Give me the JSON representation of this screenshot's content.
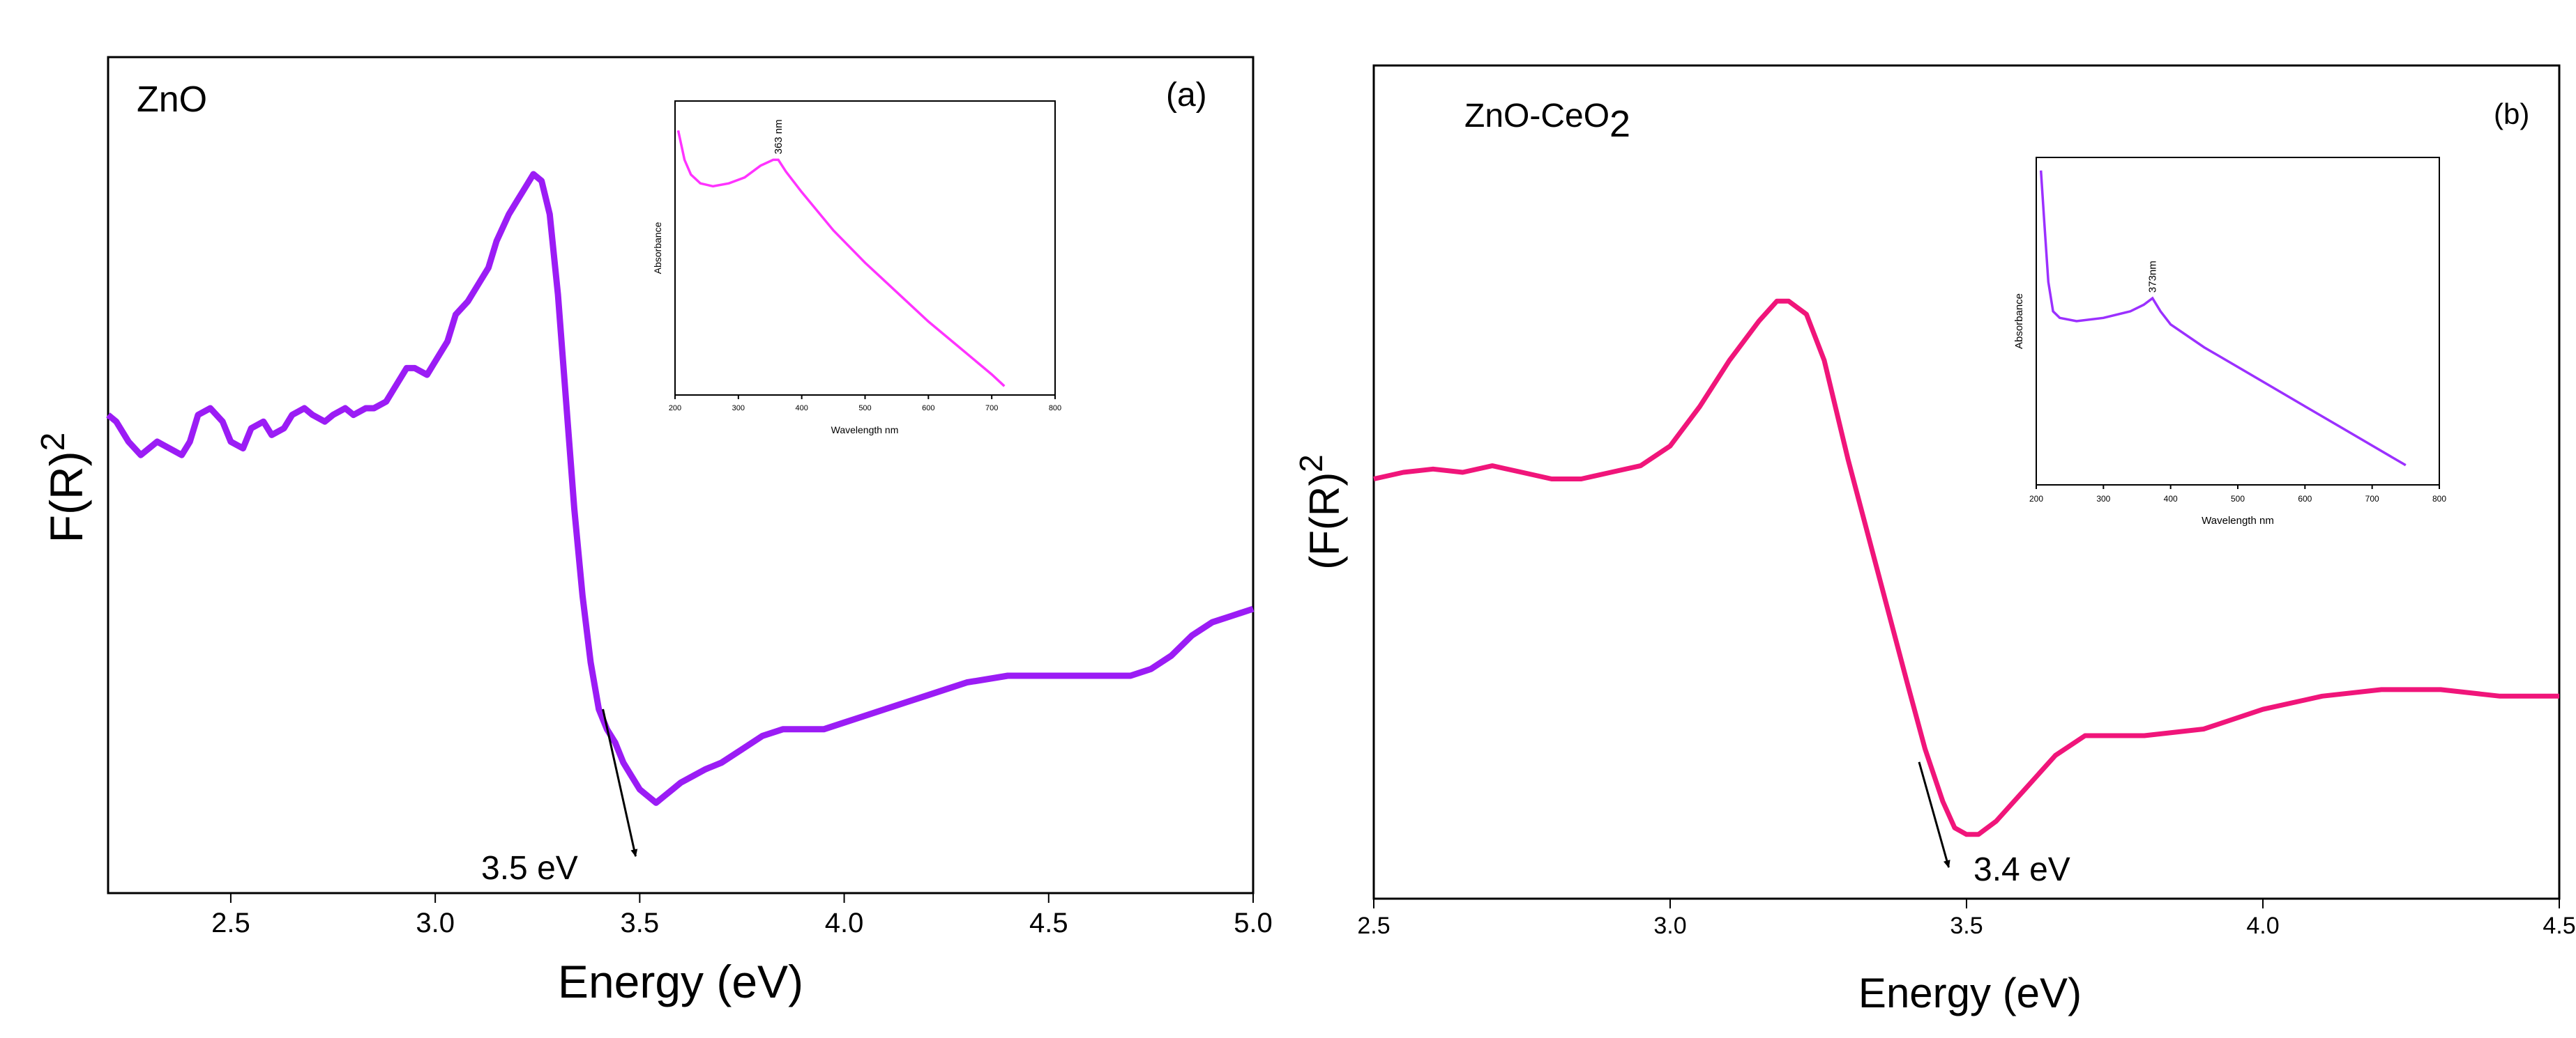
{
  "chart_data": [
    {
      "type": "line",
      "panel_label": "(a)",
      "sample_label": "ZnO",
      "xlabel": "Energy (eV)",
      "ylabel": {
        "base": "F(R)",
        "sup": "2"
      },
      "xlim": [
        2.2,
        5.0
      ],
      "ylim": [
        0,
        1
      ],
      "xticks": [
        2.5,
        3.0,
        3.5,
        4.0,
        4.5,
        5.0
      ],
      "xtick_labels": [
        "2.5",
        "3.0",
        "3.5",
        "4.0",
        "4.5",
        "5.0"
      ],
      "line_color": "#9b1cf5",
      "series": [
        {
          "name": "ZnO",
          "x": [
            2.2,
            2.22,
            2.25,
            2.28,
            2.3,
            2.32,
            2.35,
            2.38,
            2.4,
            2.42,
            2.45,
            2.48,
            2.5,
            2.53,
            2.55,
            2.58,
            2.6,
            2.63,
            2.65,
            2.68,
            2.7,
            2.73,
            2.75,
            2.78,
            2.8,
            2.83,
            2.85,
            2.88,
            2.9,
            2.93,
            2.95,
            2.98,
            3.0,
            3.03,
            3.05,
            3.08,
            3.1,
            3.13,
            3.15,
            3.18,
            3.2,
            3.22,
            3.24,
            3.26,
            3.28,
            3.3,
            3.32,
            3.34,
            3.36,
            3.38,
            3.4,
            3.42,
            3.44,
            3.46,
            3.48,
            3.5,
            3.52,
            3.54,
            3.56,
            3.58,
            3.6,
            3.63,
            3.66,
            3.7,
            3.75,
            3.8,
            3.85,
            3.9,
            3.95,
            4.0,
            4.05,
            4.1,
            4.15,
            4.2,
            4.25,
            4.3,
            4.4,
            4.5,
            4.6,
            4.7,
            4.75,
            4.8,
            4.85,
            4.9,
            4.95,
            5.0
          ],
          "y": [
            0.64,
            0.63,
            0.6,
            0.58,
            0.59,
            0.6,
            0.59,
            0.58,
            0.6,
            0.64,
            0.65,
            0.63,
            0.6,
            0.59,
            0.62,
            0.63,
            0.61,
            0.62,
            0.64,
            0.65,
            0.64,
            0.63,
            0.64,
            0.65,
            0.64,
            0.65,
            0.65,
            0.66,
            0.68,
            0.71,
            0.71,
            0.7,
            0.72,
            0.75,
            0.79,
            0.81,
            0.83,
            0.86,
            0.9,
            0.94,
            0.96,
            0.98,
            1.0,
            0.99,
            0.94,
            0.82,
            0.66,
            0.5,
            0.37,
            0.27,
            0.2,
            0.17,
            0.15,
            0.12,
            0.1,
            0.08,
            0.07,
            0.06,
            0.07,
            0.08,
            0.09,
            0.1,
            0.11,
            0.12,
            0.14,
            0.16,
            0.17,
            0.17,
            0.17,
            0.18,
            0.19,
            0.2,
            0.21,
            0.22,
            0.23,
            0.24,
            0.25,
            0.25,
            0.25,
            0.25,
            0.26,
            0.28,
            0.31,
            0.33,
            0.34,
            0.35
          ]
        }
      ],
      "annotation": {
        "text": "3.5 eV",
        "arrow_from": [
          3.41,
          0.2
        ],
        "arrow_to": [
          3.49,
          -0.02
        ]
      },
      "inset": {
        "type": "line",
        "xlabel": "Wavelength nm",
        "ylabel": "Absorbance",
        "xlim": [
          200,
          800
        ],
        "ylim": [
          0,
          1
        ],
        "xticks": [
          200,
          300,
          400,
          500,
          600,
          700,
          800
        ],
        "xtick_labels": [
          "200",
          "300",
          "400",
          "500",
          "600",
          "700",
          "800"
        ],
        "peak_label": "363 nm",
        "peak_x": 363,
        "line_color": "#ff33ff",
        "series": [
          {
            "name": "ZnO absorbance",
            "x": [
              205,
              215,
              225,
              240,
              260,
              285,
              310,
              335,
              355,
              363,
              375,
              400,
              450,
              500,
              550,
              600,
              650,
              700,
              720
            ],
            "y": [
              0.9,
              0.8,
              0.75,
              0.72,
              0.71,
              0.72,
              0.74,
              0.78,
              0.8,
              0.8,
              0.76,
              0.69,
              0.56,
              0.45,
              0.35,
              0.25,
              0.16,
              0.07,
              0.03
            ]
          }
        ]
      }
    },
    {
      "type": "line",
      "panel_label": "(b)",
      "sample_label": {
        "base": "ZnO-CeO",
        "sub": "2"
      },
      "xlabel": "Energy (eV)",
      "ylabel": {
        "base": "(F(R)",
        "sup": "2",
        "tail": ""
      },
      "xlim": [
        2.5,
        4.5
      ],
      "ylim": [
        0,
        1
      ],
      "xticks": [
        2.5,
        3.0,
        3.5,
        4.0,
        4.5
      ],
      "xtick_labels": [
        "2.5",
        "3.0",
        "3.5",
        "4.0",
        "4.5"
      ],
      "line_color": "#f0157a",
      "series": [
        {
          "name": "ZnO-CeO2",
          "x": [
            2.5,
            2.55,
            2.6,
            2.65,
            2.7,
            2.75,
            2.8,
            2.85,
            2.9,
            2.95,
            3.0,
            3.05,
            3.1,
            3.15,
            3.18,
            3.2,
            3.23,
            3.26,
            3.3,
            3.35,
            3.4,
            3.43,
            3.46,
            3.48,
            3.5,
            3.52,
            3.55,
            3.6,
            3.65,
            3.7,
            3.75,
            3.8,
            3.9,
            4.0,
            4.1,
            4.2,
            4.3,
            4.4,
            4.5
          ],
          "y": [
            0.59,
            0.6,
            0.605,
            0.6,
            0.61,
            0.6,
            0.59,
            0.59,
            0.6,
            0.61,
            0.64,
            0.7,
            0.77,
            0.83,
            0.86,
            0.86,
            0.84,
            0.77,
            0.62,
            0.45,
            0.28,
            0.18,
            0.1,
            0.06,
            0.05,
            0.05,
            0.07,
            0.12,
            0.17,
            0.2,
            0.2,
            0.2,
            0.21,
            0.24,
            0.26,
            0.27,
            0.27,
            0.26,
            0.26
          ]
        }
      ],
      "annotation": {
        "text": "3.4 eV",
        "arrow_from": [
          3.42,
          0.16
        ],
        "arrow_to": [
          3.47,
          0.0
        ]
      },
      "inset": {
        "type": "line",
        "xlabel": "Wavelength nm",
        "ylabel": "Absorbance",
        "xlim": [
          200,
          800
        ],
        "ylim": [
          0,
          1
        ],
        "xticks": [
          200,
          300,
          400,
          500,
          600,
          700,
          800
        ],
        "xtick_labels": [
          "200",
          "300",
          "400",
          "500",
          "600",
          "700",
          "800"
        ],
        "peak_label": "373nm",
        "peak_x": 373,
        "line_color": "#9b30ff",
        "series": [
          {
            "name": "ZnO-CeO2 absorbance",
            "x": [
              207,
              212,
              218,
              225,
              235,
              260,
              300,
              340,
              360,
              373,
              385,
              400,
              450,
              500,
              550,
              600,
              650,
              700,
              750
            ],
            "y": [
              0.96,
              0.8,
              0.62,
              0.53,
              0.51,
              0.5,
              0.51,
              0.53,
              0.55,
              0.57,
              0.53,
              0.49,
              0.42,
              0.36,
              0.3,
              0.24,
              0.18,
              0.12,
              0.06
            ]
          }
        ]
      }
    }
  ]
}
